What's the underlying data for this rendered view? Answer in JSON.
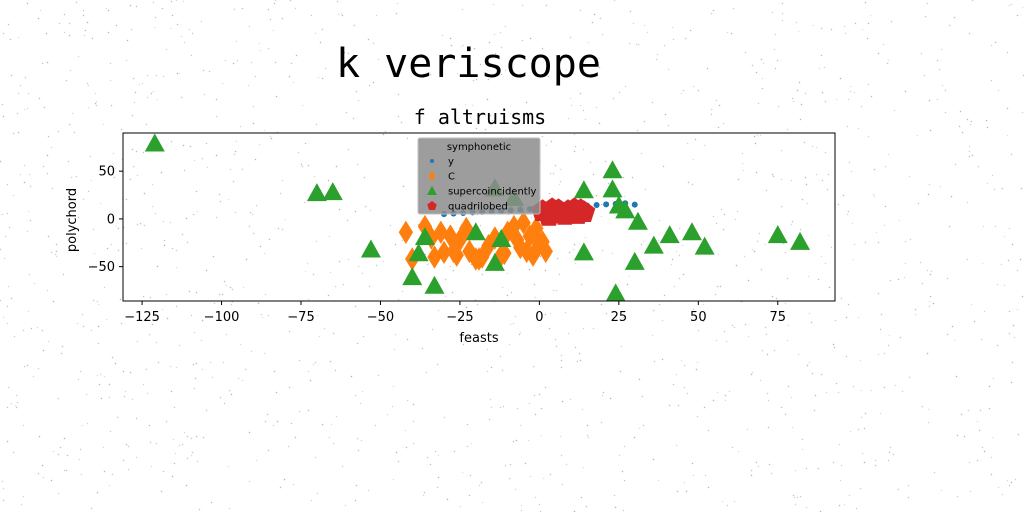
{
  "suptitle": "k veriscope",
  "chart_data": {
    "type": "scatter",
    "title": "f altruisms",
    "xlabel": "feasts",
    "ylabel": "polychord",
    "xlim": [
      -131,
      93
    ],
    "ylim": [
      -86,
      90
    ],
    "xticks": [
      -125,
      -100,
      -75,
      -50,
      -25,
      0,
      25,
      50,
      75
    ],
    "xtick_labels": [
      "−125",
      "−100",
      "−75",
      "−50",
      "−25",
      "0",
      "25",
      "50",
      "75"
    ],
    "yticks": [
      50,
      0,
      -50
    ],
    "ytick_labels": [
      "50",
      "0",
      "−50"
    ],
    "grid": false,
    "legend": {
      "title": "symphonetic",
      "placement": "top-center",
      "entries": [
        "y",
        "C",
        "supercoincidently",
        "quadrilobed"
      ]
    },
    "series": [
      {
        "name": "y",
        "marker": "circle",
        "color": "#1f77b4",
        "x": [
          -30,
          -27,
          -24,
          -21,
          -18,
          -15,
          -12,
          -9,
          -6,
          -3,
          0,
          3,
          6,
          9,
          12,
          15,
          18,
          21,
          24,
          27,
          30
        ],
        "y": [
          5,
          5.6,
          6.2,
          6.8,
          7.4,
          8,
          8.6,
          9.2,
          9.8,
          10.4,
          11,
          11.6,
          12.2,
          12.8,
          13.4,
          14,
          14.6,
          15.2,
          15.8,
          16.4,
          15
        ]
      },
      {
        "name": "C",
        "marker": "diamond",
        "color": "#ff7f0e",
        "x": [
          -42,
          -40,
          -36,
          -34,
          -31,
          -30,
          -28,
          -26,
          -25,
          -23,
          -22,
          -20,
          -18,
          -16,
          -14,
          -12,
          -10,
          -8,
          -7,
          -5,
          -4,
          -3,
          -2,
          -1,
          0,
          1,
          2,
          -33,
          -27,
          -19,
          -11,
          -6
        ],
        "y": [
          -14,
          -42,
          -8,
          -20,
          -14,
          -35,
          -18,
          -38,
          -22,
          -10,
          -34,
          -42,
          -40,
          -28,
          -20,
          -38,
          -14,
          -8,
          -22,
          -4,
          -34,
          -18,
          -38,
          -10,
          -26,
          -24,
          -34,
          -40,
          -34,
          -42,
          -36,
          -30
        ]
      },
      {
        "name": "supercoincidently",
        "marker": "triangle",
        "color": "#2ca02c",
        "x": [
          -121,
          -70,
          -65,
          -53,
          -40,
          -38,
          -36,
          -33,
          -20,
          -14,
          -14,
          -12,
          14,
          14,
          24,
          23,
          23,
          27,
          31,
          30,
          36,
          41,
          48,
          52,
          75,
          82,
          25,
          -8
        ],
        "y": [
          79,
          27,
          28,
          -32,
          -61,
          -36,
          -19,
          -70,
          -14,
          32,
          -46,
          -21,
          -35,
          30,
          -78,
          51,
          31,
          9,
          -3,
          -45,
          -28,
          -17,
          -14,
          -29,
          -17,
          -24,
          14,
          22
        ]
      },
      {
        "name": "quadrilobed",
        "marker": "pentagon",
        "color": "#d62728",
        "x": [
          1,
          3,
          4,
          5,
          6,
          8,
          9,
          10,
          11,
          12,
          13,
          14
        ],
        "y": [
          8,
          3,
          10,
          6,
          9,
          4,
          8,
          6,
          10,
          5,
          9,
          7
        ]
      }
    ]
  }
}
